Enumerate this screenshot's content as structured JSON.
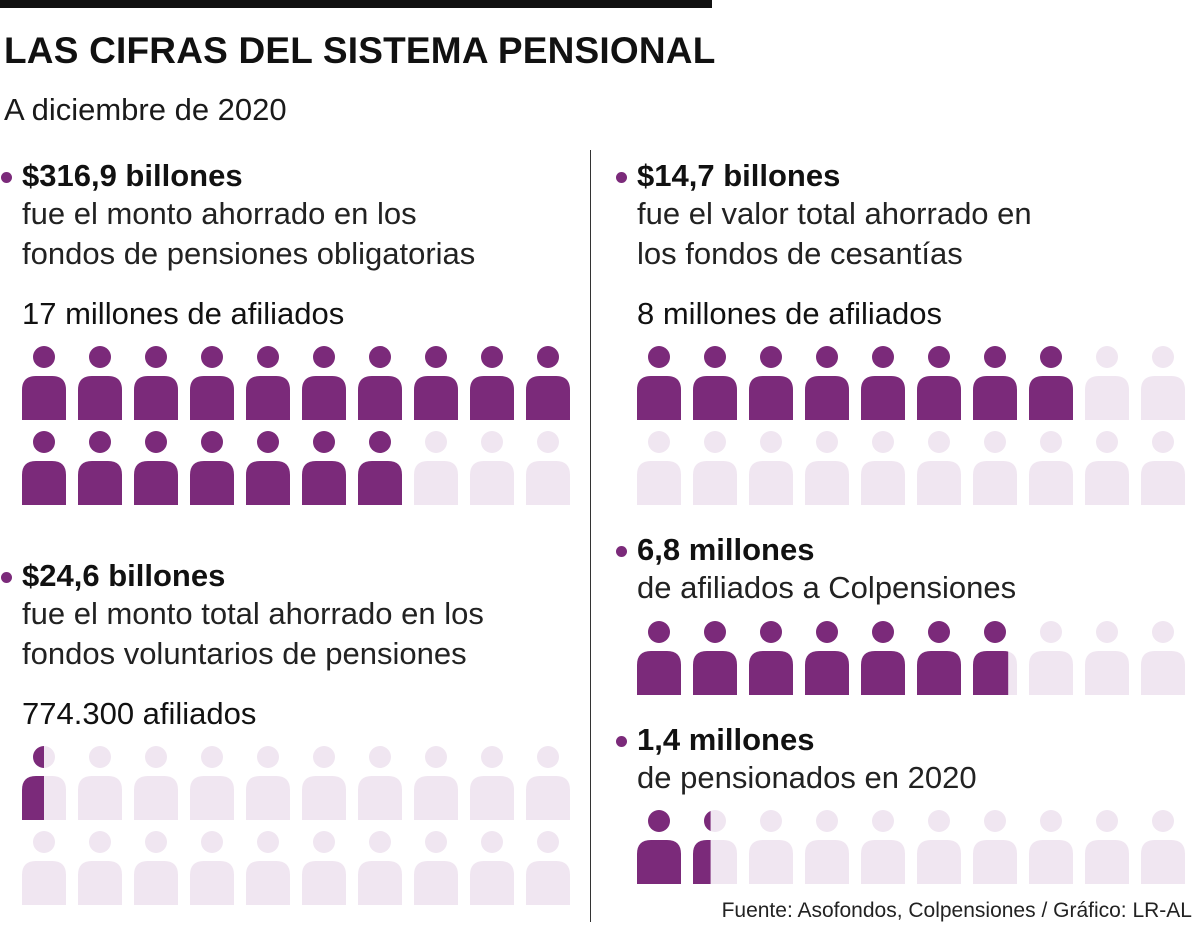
{
  "header": {
    "title": "LAS CIFRAS DEL SISTEMA PENSIONAL",
    "subtitle": "A diciembre de 2020"
  },
  "colors": {
    "filled": "#7b2a7a",
    "empty": "#f0e6f1",
    "bullet": "#7b2a7a"
  },
  "icon": "person-icon",
  "sections": {
    "obligatorias": {
      "headline": "$316,9 billones",
      "desc1": "fue el monto ahorrado en los",
      "desc2": "fondos de pensiones obligatorias",
      "count_label": "17 millones de afiliados",
      "filled": 17,
      "total": 20
    },
    "voluntarios": {
      "headline": "$24,6 billones",
      "desc1": "fue el monto total ahorrado en los",
      "desc2": "fondos voluntarios de pensiones",
      "count_label": "774.300 afiliados",
      "filled": 0.5,
      "total": 20
    },
    "cesantias": {
      "headline": "$14,7 billones",
      "desc1": "fue el valor total ahorrado en",
      "desc2": "los fondos de cesantías",
      "count_label": "8 millones de afiliados",
      "filled": 8,
      "total": 20
    },
    "colpensiones": {
      "headline": "6,8 millones",
      "desc1": "de afiliados a Colpensiones",
      "filled": 6.8,
      "total": 10
    },
    "pensionados": {
      "headline": "1,4 millones",
      "desc1": "de pensionados en 2020",
      "filled": 1.4,
      "total": 10
    }
  },
  "footer": "Fuente: Asofondos, Colpensiones / Gráfico: LR-AL"
}
